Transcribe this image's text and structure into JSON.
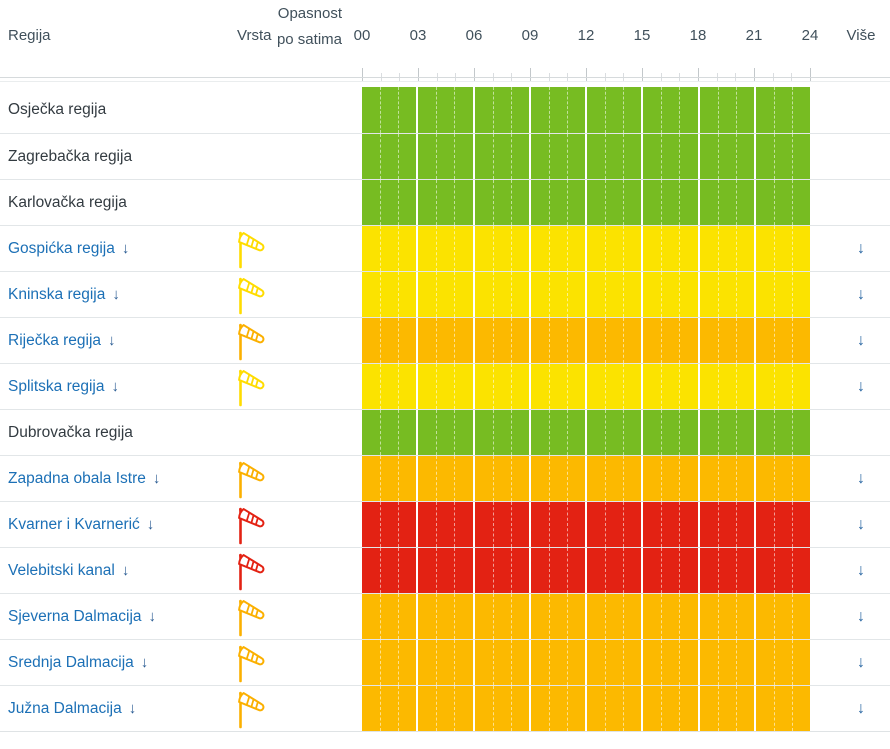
{
  "header": {
    "col_region": "Regija",
    "col_type": "Vrsta",
    "col_danger": "Opasnost po satima",
    "hours": [
      "00",
      "03",
      "06",
      "09",
      "12",
      "15",
      "18",
      "21",
      "24"
    ],
    "col_more": "Više"
  },
  "arrow_glyph": "↓",
  "colors": {
    "green": "#77BC22",
    "yellow": "#FBE300",
    "orange": "#FCB900",
    "red": "#E32213",
    "windsock_yellow": "#FFDC00",
    "windsock_orange": "#FBB000",
    "windsock_red": "#E32213",
    "link_blue": "#1C70B6",
    "arrow_blue": "#2A5C93"
  },
  "chart": {
    "blocks_per_row": 8,
    "hours_per_block": 3,
    "hours_total": 24
  },
  "regions": [
    {
      "name": "Osječka regija",
      "severity": "green",
      "warning": false,
      "warning_type": ""
    },
    {
      "name": "Zagrebačka regija",
      "severity": "green",
      "warning": false,
      "warning_type": ""
    },
    {
      "name": "Karlovačka regija",
      "severity": "green",
      "warning": false,
      "warning_type": ""
    },
    {
      "name": "Gospićka regija",
      "severity": "yellow",
      "warning": true,
      "warning_type": "wind"
    },
    {
      "name": "Kninska regija",
      "severity": "yellow",
      "warning": true,
      "warning_type": "wind"
    },
    {
      "name": "Riječka regija",
      "severity": "orange",
      "warning": true,
      "warning_type": "wind"
    },
    {
      "name": "Splitska regija",
      "severity": "yellow",
      "warning": true,
      "warning_type": "wind"
    },
    {
      "name": "Dubrovačka regija",
      "severity": "green",
      "warning": false,
      "warning_type": ""
    },
    {
      "name": "Zapadna obala Istre",
      "severity": "orange",
      "warning": true,
      "warning_type": "wind"
    },
    {
      "name": "Kvarner i Kvarnerić",
      "severity": "red",
      "warning": true,
      "warning_type": "wind"
    },
    {
      "name": "Velebitski kanal",
      "severity": "red",
      "warning": true,
      "warning_type": "wind"
    },
    {
      "name": "Sjeverna Dalmacija",
      "severity": "orange",
      "warning": true,
      "warning_type": "wind"
    },
    {
      "name": "Srednja Dalmacija",
      "severity": "orange",
      "warning": true,
      "warning_type": "wind"
    },
    {
      "name": "Južna Dalmacija",
      "severity": "orange",
      "warning": true,
      "warning_type": "wind"
    }
  ]
}
